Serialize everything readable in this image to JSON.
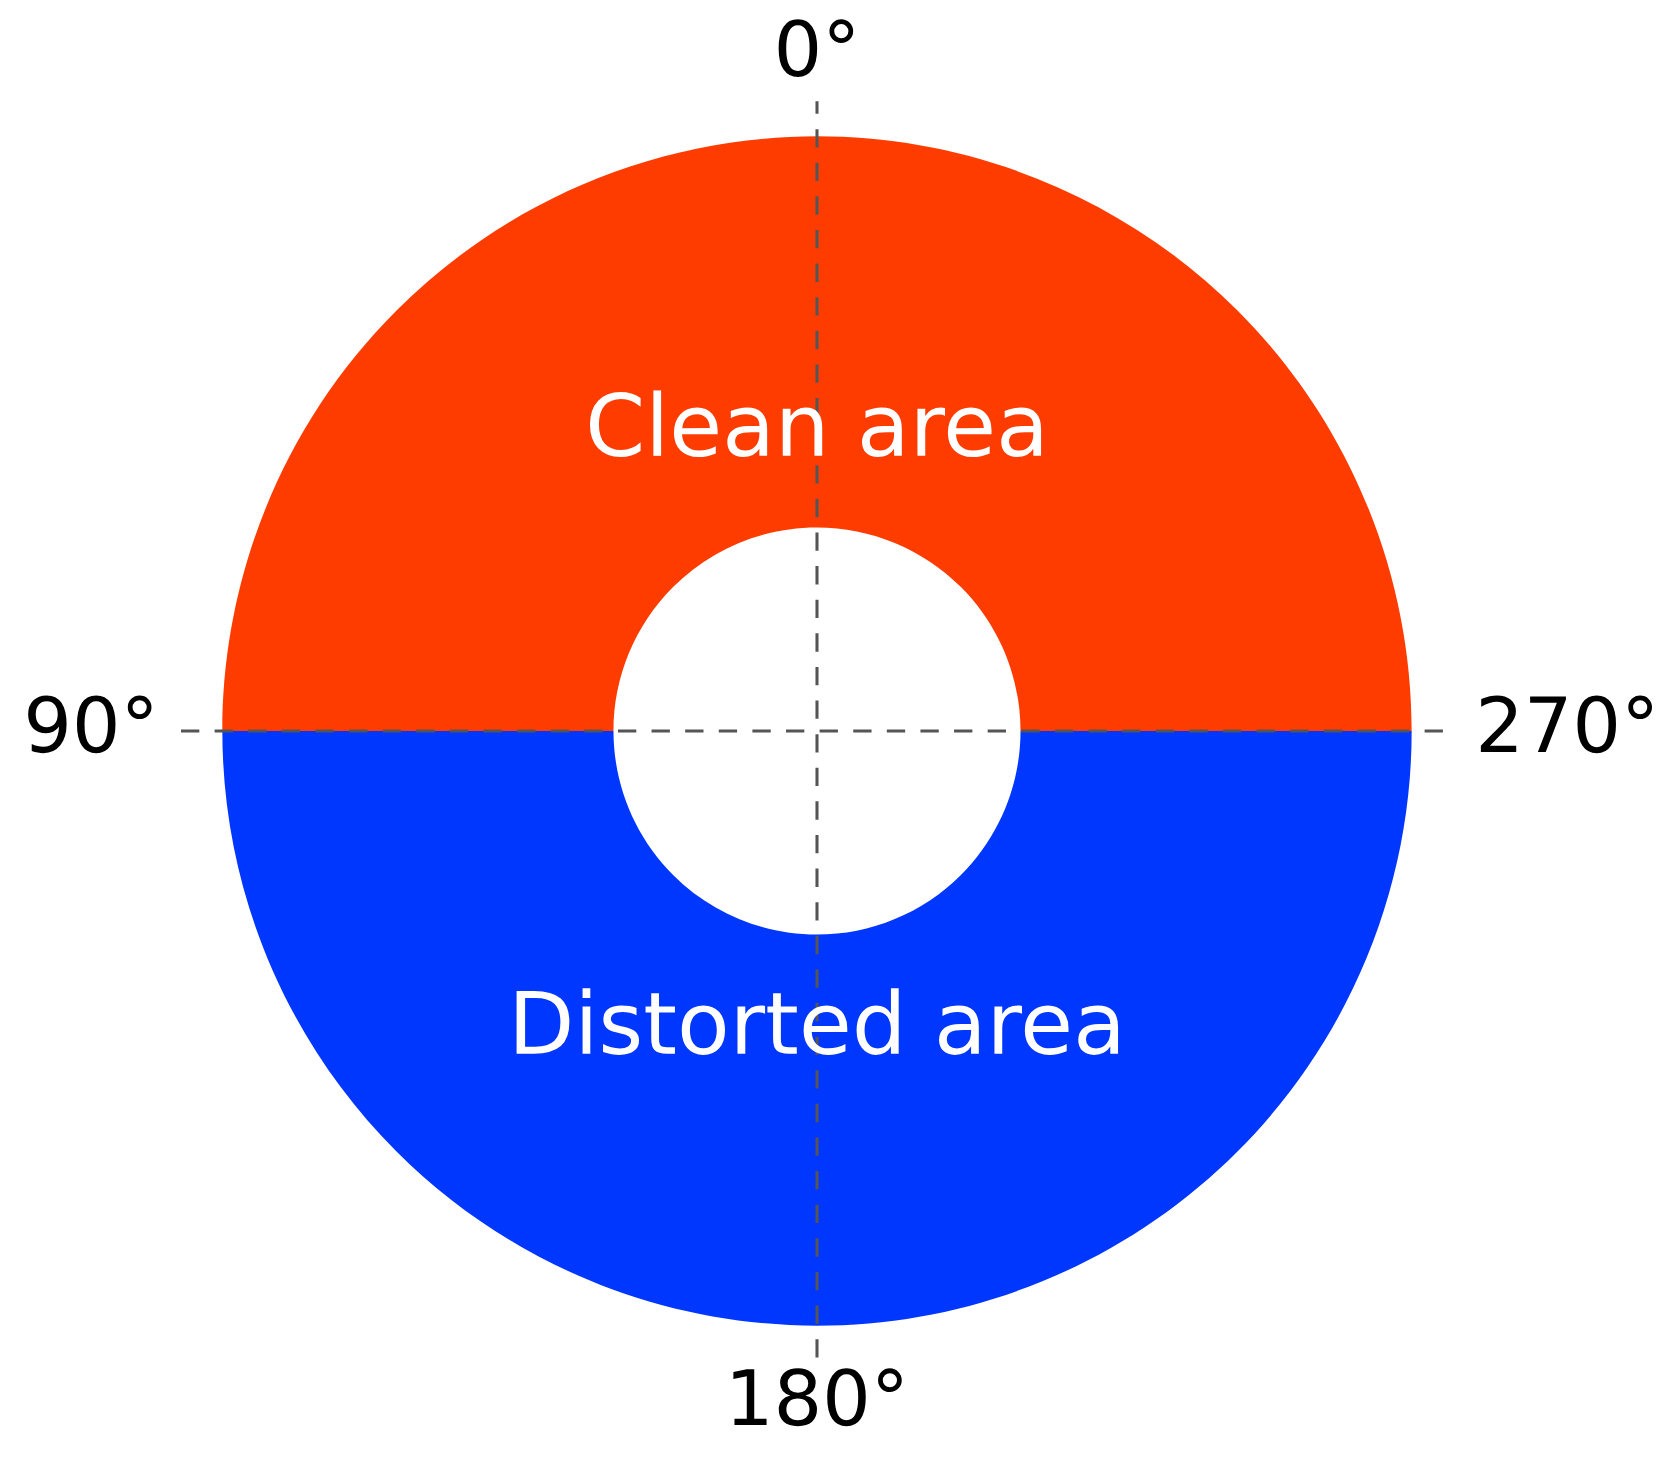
{
  "chart_data": {
    "type": "donut",
    "categories": [
      "Clean area",
      "Distorted area"
    ],
    "values": [
      50,
      50
    ],
    "colors": [
      "#ff3c00",
      "#0037ff"
    ],
    "annotations": [
      "0°",
      "90°",
      "180°",
      "270°"
    ],
    "grid": true
  }
}
